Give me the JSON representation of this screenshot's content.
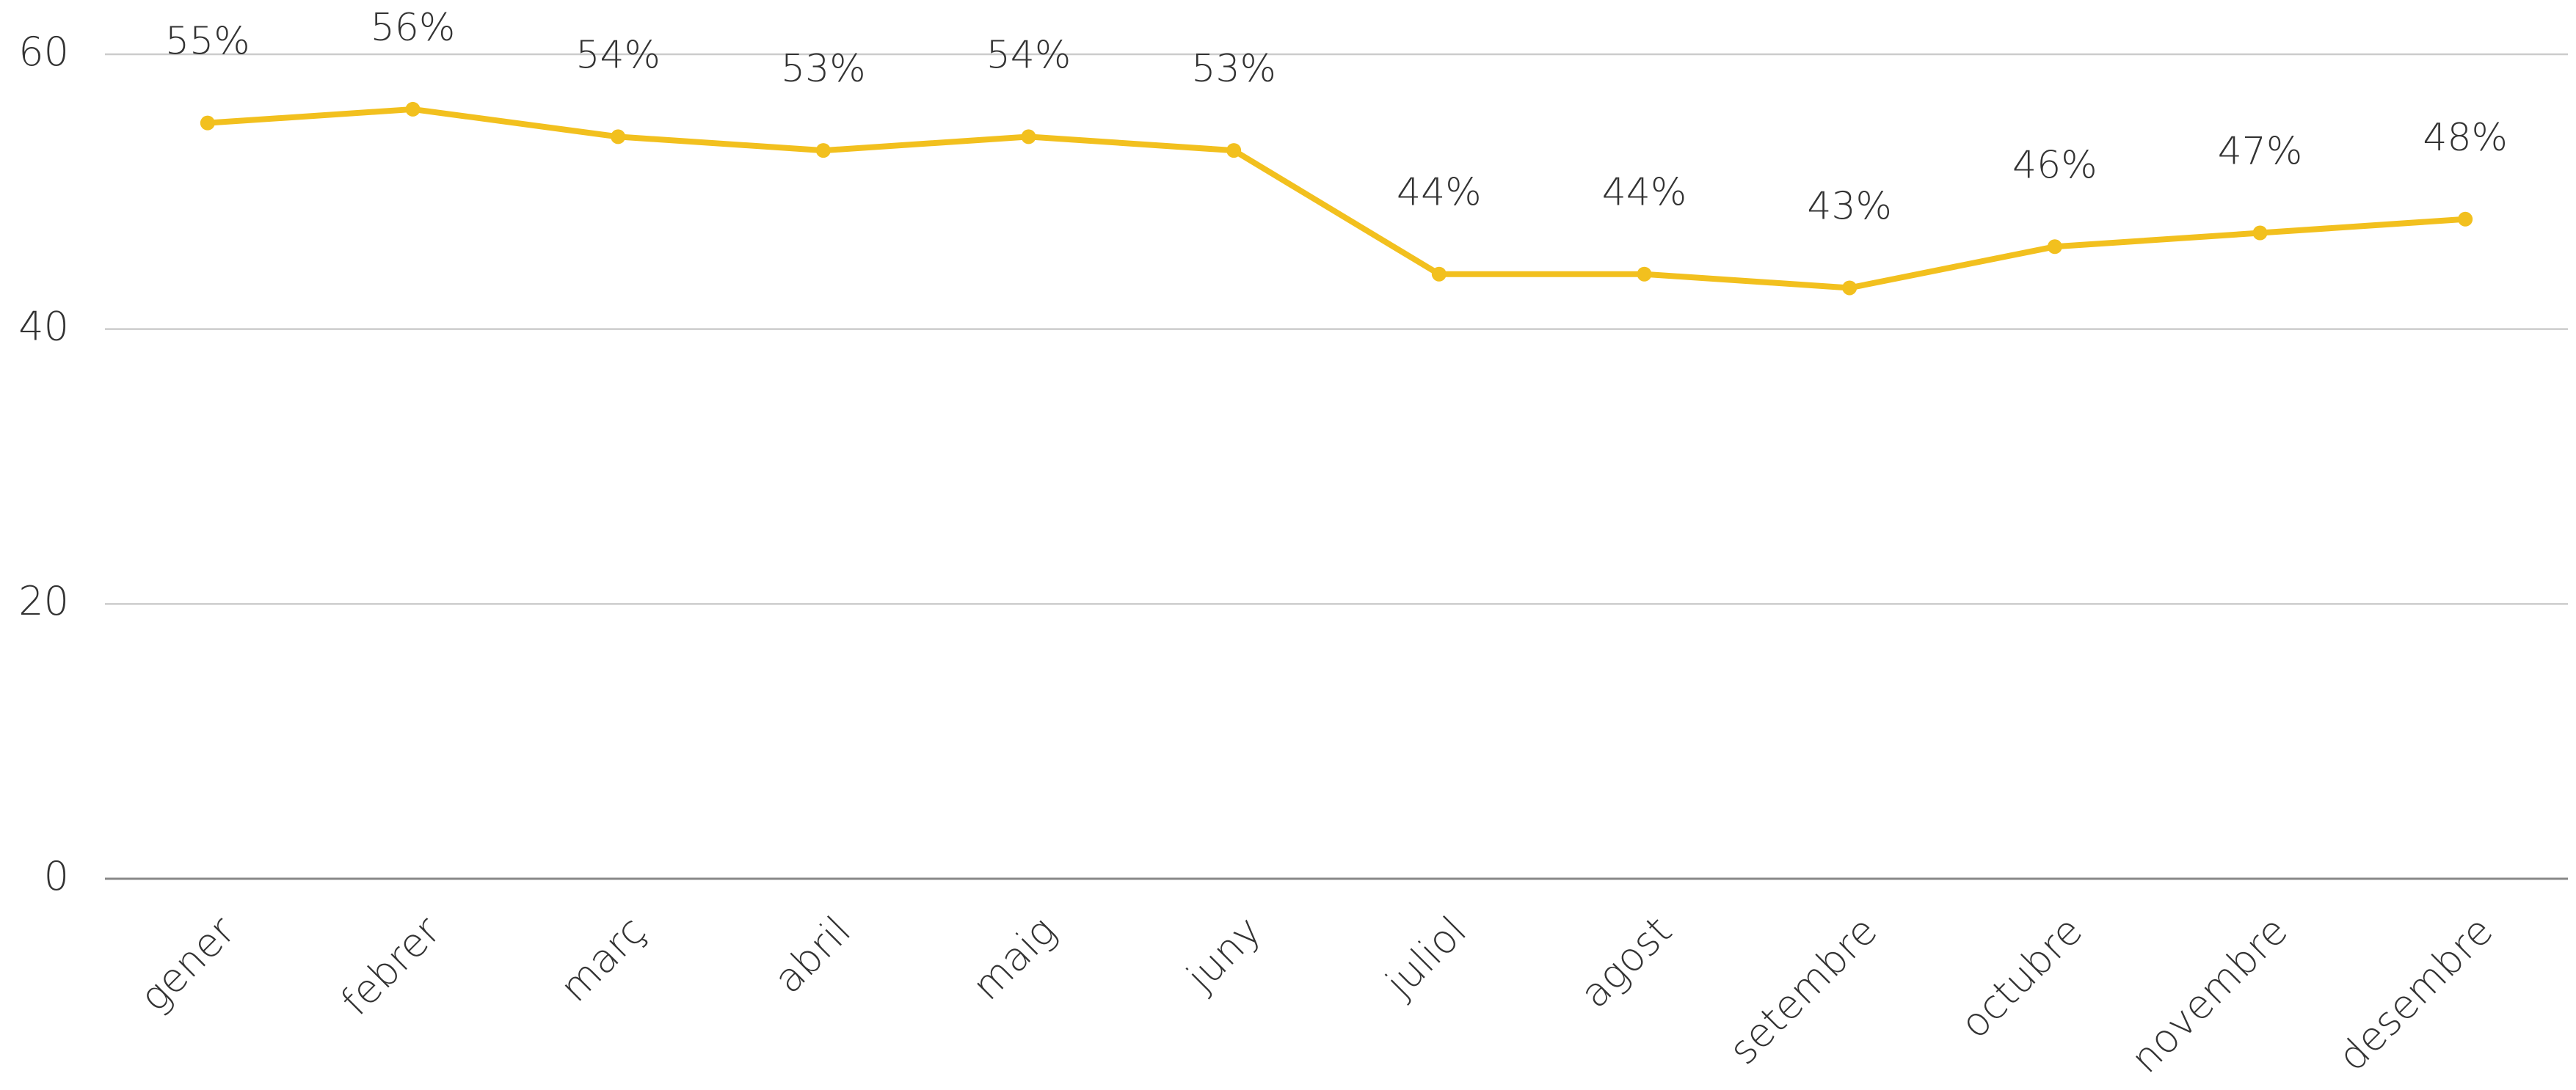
{
  "chart_data": {
    "type": "line",
    "categories": [
      "gener",
      "febrer",
      "març",
      "abril",
      "maig",
      "juny",
      "juliol",
      "agost",
      "setembre",
      "octubre",
      "novembre",
      "desembre"
    ],
    "values": [
      55,
      56,
      54,
      53,
      54,
      53,
      44,
      44,
      43,
      46,
      47,
      48
    ],
    "value_labels": [
      "55%",
      "56%",
      "54%",
      "53%",
      "54%",
      "53%",
      "44%",
      "44%",
      "43%",
      "46%",
      "47%",
      "48%"
    ],
    "color": "#f2c01e",
    "ylim": [
      0,
      60
    ],
    "yticks": [
      0,
      20,
      40,
      60
    ],
    "grid": true
  }
}
